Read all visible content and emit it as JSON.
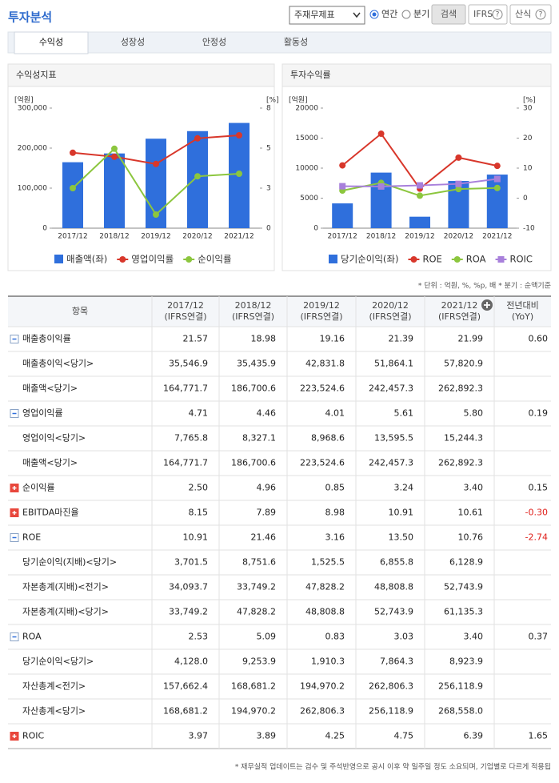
{
  "header": {
    "title": "투자분석",
    "statement": "주재무제표",
    "periods": [
      "연간",
      "분기"
    ],
    "search": "검색",
    "ifrs": "IFRS",
    "formula": "산식"
  },
  "tabs": [
    "수익성",
    "성장성",
    "안정성",
    "활동성"
  ],
  "chart_data": [
    {
      "type": "combo",
      "title": "수익성지표",
      "y_unit": "[억원]",
      "y2_unit": "[%]",
      "categories": [
        "2017/12",
        "2018/12",
        "2019/12",
        "2020/12",
        "2021/12"
      ],
      "ylim": [
        0,
        300000
      ],
      "yticks": [
        0,
        {
          "value": 100000,
          "label": "100,000"
        },
        {
          "value": 200000,
          "label": "200,000"
        },
        {
          "value": 300000,
          "label": "300,000"
        }
      ],
      "y2lim": [
        0,
        7.5
      ],
      "y2ticks": [
        0,
        {
          "value": 2.5,
          "label": "3"
        },
        5,
        {
          "value": 7.5,
          "label": "8"
        }
      ],
      "series": [
        {
          "name": "매출액(좌)",
          "type": "bar",
          "color": "#2f6fdc",
          "values": [
            164771.7,
            186700.6,
            223524.6,
            242457.3,
            262892.3
          ]
        },
        {
          "name": "영업이익률",
          "type": "line",
          "axis": "y2",
          "marker": "circle",
          "color": "#d8372b",
          "values": [
            4.71,
            4.46,
            4.01,
            5.61,
            5.8
          ]
        },
        {
          "name": "순이익률",
          "type": "line",
          "axis": "y2",
          "marker": "circle",
          "color": "#8cc63e",
          "values": [
            2.5,
            4.96,
            0.85,
            3.24,
            3.4
          ]
        }
      ]
    },
    {
      "type": "combo",
      "title": "투자수익률",
      "y_unit": "[억원]",
      "y2_unit": "[%]",
      "categories": [
        "2017/12",
        "2018/12",
        "2019/12",
        "2020/12",
        "2021/12"
      ],
      "ylim": [
        0,
        20000
      ],
      "yticks": [
        0,
        5000,
        10000,
        15000,
        20000
      ],
      "y2lim": [
        -10,
        30
      ],
      "y2ticks": [
        -10,
        0,
        10,
        20,
        30
      ],
      "series": [
        {
          "name": "당기순이익(좌)",
          "type": "bar",
          "color": "#2f6fdc",
          "values": [
            4128.0,
            9253.9,
            1910.3,
            7864.3,
            8923.9
          ]
        },
        {
          "name": "ROE",
          "type": "line",
          "axis": "y2",
          "marker": "circle",
          "color": "#d8372b",
          "values": [
            10.91,
            21.46,
            3.16,
            13.5,
            10.76
          ]
        },
        {
          "name": "ROA",
          "type": "line",
          "axis": "y2",
          "marker": "circle",
          "color": "#8cc63e",
          "values": [
            2.53,
            5.09,
            0.83,
            3.03,
            3.4
          ]
        },
        {
          "name": "ROIC",
          "type": "line",
          "axis": "y2",
          "marker": "square",
          "color": "#a880db",
          "values": [
            3.97,
            3.89,
            4.25,
            4.75,
            6.39
          ]
        }
      ]
    }
  ],
  "note": "* 단위 : 억원, %, %p, 배   * 분기 : 순액기준",
  "table": {
    "columns": [
      [
        "항목"
      ],
      [
        "2017/12",
        "(IFRS연결)"
      ],
      [
        "2018/12",
        "(IFRS연결)"
      ],
      [
        "2019/12",
        "(IFRS연결)"
      ],
      [
        "2020/12",
        "(IFRS연결)"
      ],
      [
        "2021/12",
        "(IFRS연결)"
      ],
      [
        "전년대비",
        "(YoY)"
      ]
    ],
    "rows": [
      {
        "label": "매출총이익률",
        "toggle": "minus",
        "values": [
          "21.57",
          "18.98",
          "19.16",
          "21.39",
          "21.99"
        ],
        "yoy": "0.60"
      },
      {
        "label": "매출총이익<당기>",
        "values": [
          "35,546.9",
          "35,435.9",
          "42,831.8",
          "51,864.1",
          "57,820.9"
        ]
      },
      {
        "label": "매출액<당기>",
        "values": [
          "164,771.7",
          "186,700.6",
          "223,524.6",
          "242,457.3",
          "262,892.3"
        ]
      },
      {
        "label": "영업이익률",
        "toggle": "minus",
        "values": [
          "4.71",
          "4.46",
          "4.01",
          "5.61",
          "5.80"
        ],
        "yoy": "0.19"
      },
      {
        "label": "영업이익<당기>",
        "values": [
          "7,765.8",
          "8,327.1",
          "8,968.6",
          "13,595.5",
          "15,244.3"
        ]
      },
      {
        "label": "매출액<당기>",
        "values": [
          "164,771.7",
          "186,700.6",
          "223,524.6",
          "242,457.3",
          "262,892.3"
        ]
      },
      {
        "label": "순이익률",
        "toggle": "plus",
        "values": [
          "2.50",
          "4.96",
          "0.85",
          "3.24",
          "3.40"
        ],
        "yoy": "0.15"
      },
      {
        "label": "EBITDA마진율",
        "toggle": "plus",
        "values": [
          "8.15",
          "7.89",
          "8.98",
          "10.91",
          "10.61"
        ],
        "yoy": "-0.30"
      },
      {
        "label": "ROE",
        "toggle": "minus",
        "values": [
          "10.91",
          "21.46",
          "3.16",
          "13.50",
          "10.76"
        ],
        "yoy": "-2.74"
      },
      {
        "label": "당기순이익(지배)<당기>",
        "values": [
          "3,701.5",
          "8,751.6",
          "1,525.5",
          "6,855.8",
          "6,128.9"
        ]
      },
      {
        "label": "자본총계(지배)<전기>",
        "values": [
          "34,093.7",
          "33,749.2",
          "47,828.2",
          "48,808.8",
          "52,743.9"
        ]
      },
      {
        "label": "자본총계(지배)<당기>",
        "values": [
          "33,749.2",
          "47,828.2",
          "48,808.8",
          "52,743.9",
          "61,135.3"
        ]
      },
      {
        "label": "ROA",
        "toggle": "minus",
        "values": [
          "2.53",
          "5.09",
          "0.83",
          "3.03",
          "3.40"
        ],
        "yoy": "0.37"
      },
      {
        "label": "당기순이익<당기>",
        "values": [
          "4,128.0",
          "9,253.9",
          "1,910.3",
          "7,864.3",
          "8,923.9"
        ]
      },
      {
        "label": "자산총계<전기>",
        "values": [
          "157,662.4",
          "168,681.2",
          "194,970.2",
          "262,806.3",
          "256,118.9"
        ]
      },
      {
        "label": "자산총계<당기>",
        "values": [
          "168,681.2",
          "194,970.2",
          "262,806.3",
          "256,118.9",
          "268,558.0"
        ]
      },
      {
        "label": "ROIC",
        "toggle": "plus",
        "values": [
          "3.97",
          "3.89",
          "4.25",
          "4.75",
          "6.39"
        ],
        "yoy": "1.65"
      }
    ]
  },
  "footer": "* 재무실적 업데이트는 검수 및 주석반영으로 공시 이후 약 일주일 정도 소요되며, 기업별로 다르게 적용됩"
}
